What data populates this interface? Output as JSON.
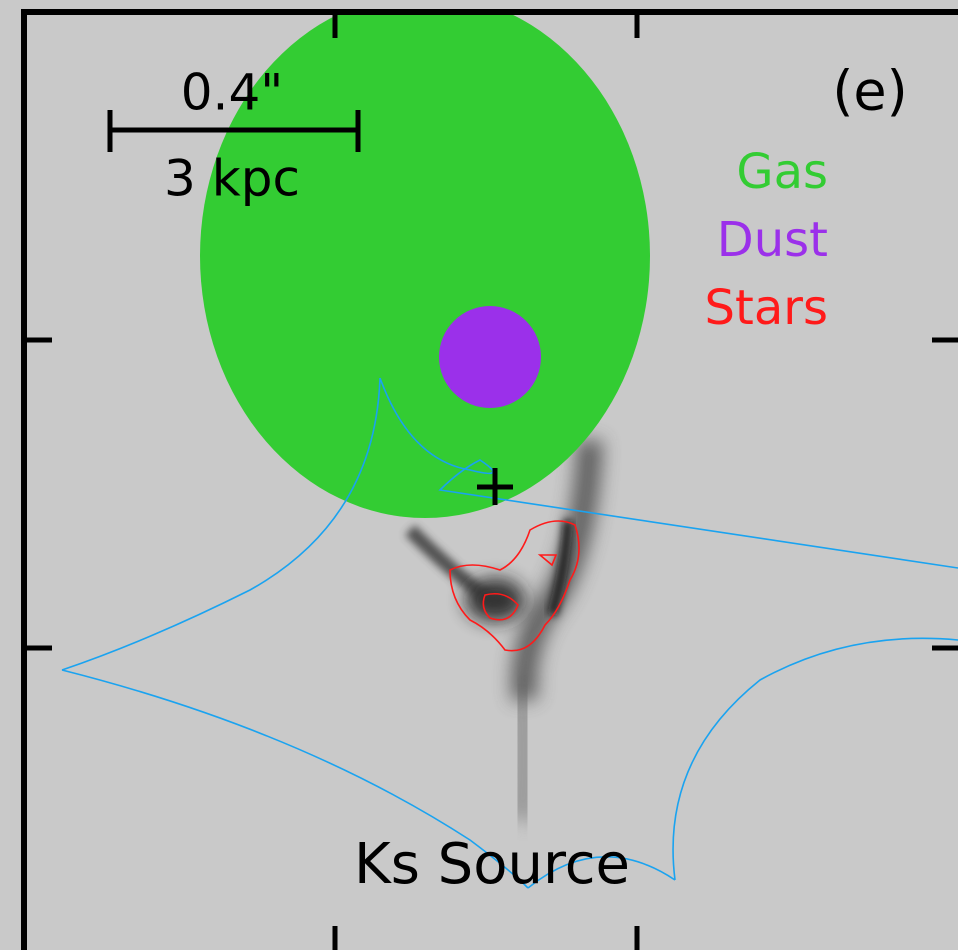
{
  "panel_label": "(e)",
  "scale_bar": {
    "angular": "0.4\"",
    "physical": "3 kpc"
  },
  "legend": [
    {
      "label": "Gas",
      "color": "#33cc33"
    },
    {
      "label": "Dust",
      "color": "#9b30ea"
    },
    {
      "label": "Stars",
      "color": "#ff1a1a"
    }
  ],
  "caption": "Ks Source"
}
